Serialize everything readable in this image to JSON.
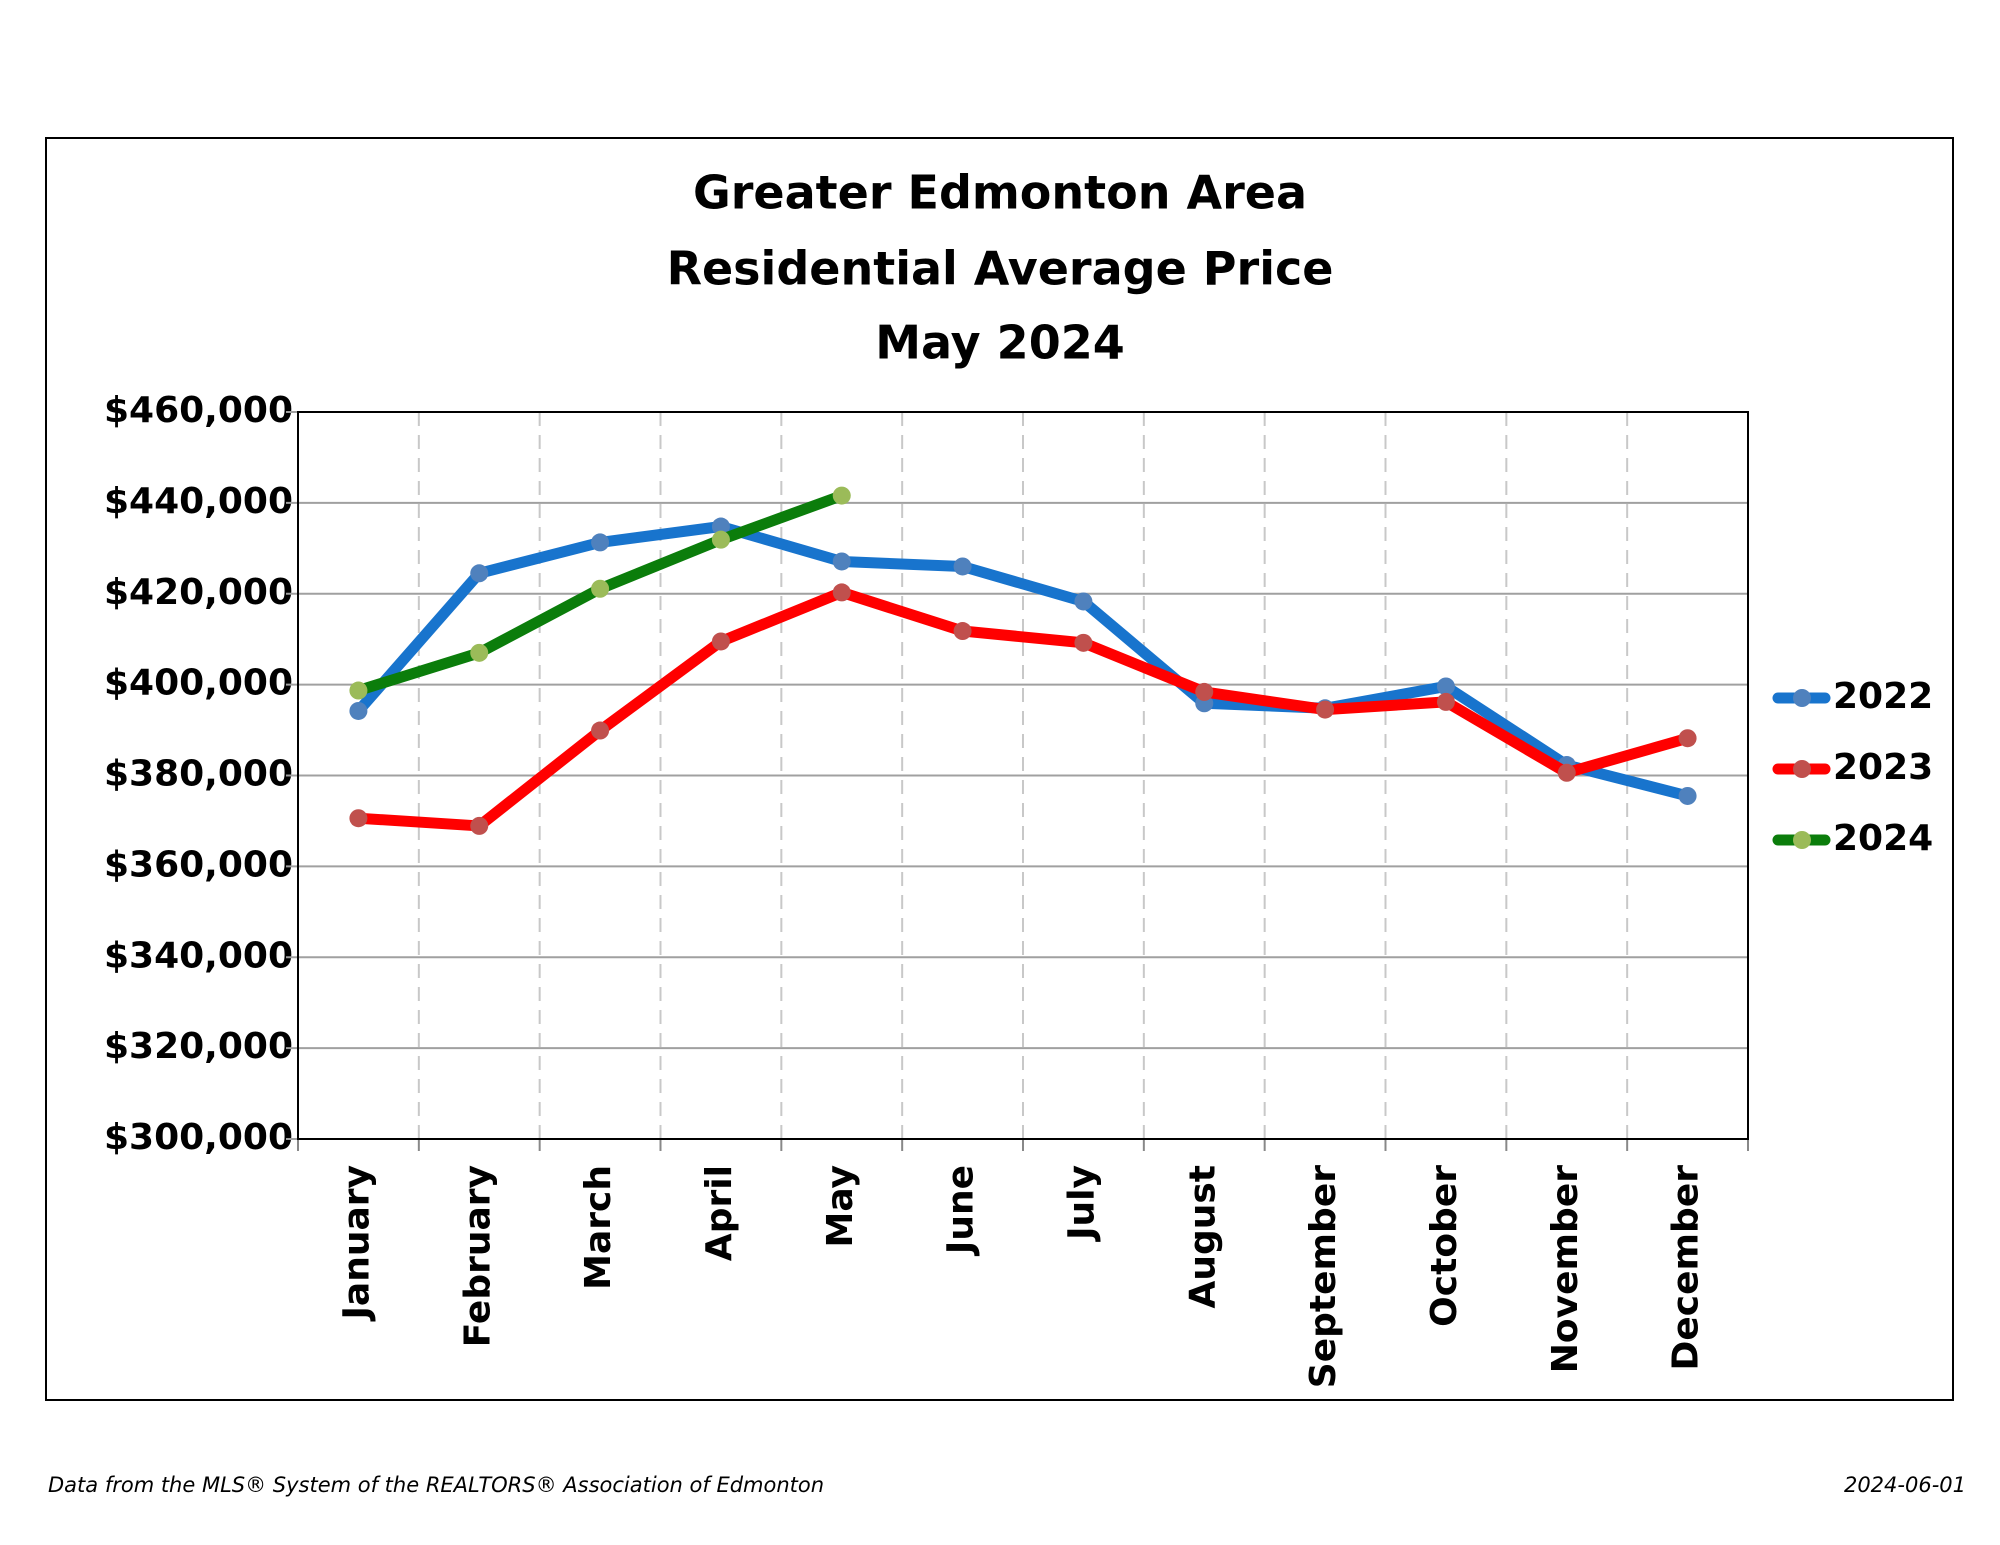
{
  "chart_data": {
    "type": "line",
    "title": [
      "Greater Edmonton Area",
      "Residential Average Price",
      "May 2024"
    ],
    "categories": [
      "January",
      "February",
      "March",
      "April",
      "May",
      "June",
      "July",
      "August",
      "September",
      "October",
      "November",
      "December"
    ],
    "series": [
      {
        "name": "2022",
        "color": "#1874cd",
        "marker_color": "#4f81bd",
        "values": [
          394200,
          424500,
          431300,
          434800,
          427100,
          426000,
          418300,
          395900,
          394800,
          399600,
          382300,
          375500
        ]
      },
      {
        "name": "2023",
        "color": "#ff0000",
        "marker_color": "#c0504d",
        "values": [
          370600,
          368900,
          389900,
          409500,
          420300,
          411800,
          409200,
          398400,
          394500,
          396200,
          380600,
          388200
        ]
      },
      {
        "name": "2024",
        "color": "#0b7d0b",
        "marker_color": "#9bbb59",
        "values": [
          398700,
          407000,
          421100,
          431900,
          441600,
          null,
          null,
          null,
          null,
          null,
          null,
          null
        ]
      }
    ],
    "ylim": [
      300000,
      460000
    ],
    "yticks": [
      {
        "value": 300000,
        "label": "$300,000"
      },
      {
        "value": 320000,
        "label": "$320,000"
      },
      {
        "value": 340000,
        "label": "$340,000"
      },
      {
        "value": 360000,
        "label": "$360,000"
      },
      {
        "value": 380000,
        "label": "$380,000"
      },
      {
        "value": 400000,
        "label": "$400,000"
      },
      {
        "value": 420000,
        "label": "$420,000"
      },
      {
        "value": 440000,
        "label": "$440,000"
      },
      {
        "value": 460000,
        "label": "$460,000"
      }
    ],
    "grid": true,
    "legend": "right",
    "footer_left": "Data from the MLS® System of the REALTORS® Association of Edmonton",
    "footer_right": "2024-06-01"
  }
}
